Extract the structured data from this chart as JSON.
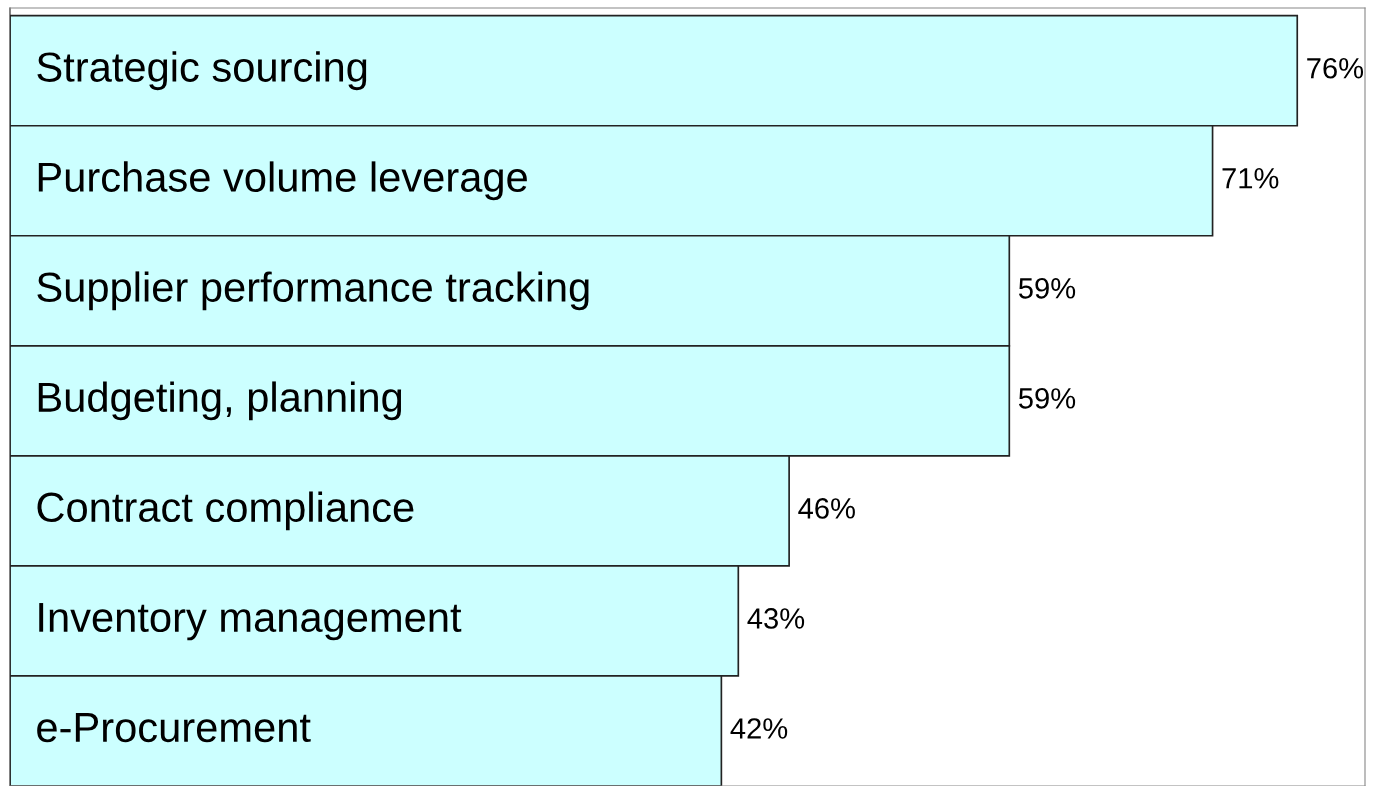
{
  "chart_data": {
    "type": "bar",
    "orientation": "horizontal",
    "categories": [
      "Strategic sourcing",
      "Purchase volume leverage",
      "Supplier performance tracking",
      "Budgeting, planning",
      "Contract compliance",
      "Inventory management",
      "e-Procurement"
    ],
    "values": [
      76,
      71,
      59,
      59,
      46,
      43,
      42
    ],
    "value_labels": [
      "76%",
      "71%",
      "59%",
      "59%",
      "46%",
      "43%",
      "42%"
    ],
    "color": "#ccffff",
    "xlim": [
      0,
      80
    ]
  }
}
